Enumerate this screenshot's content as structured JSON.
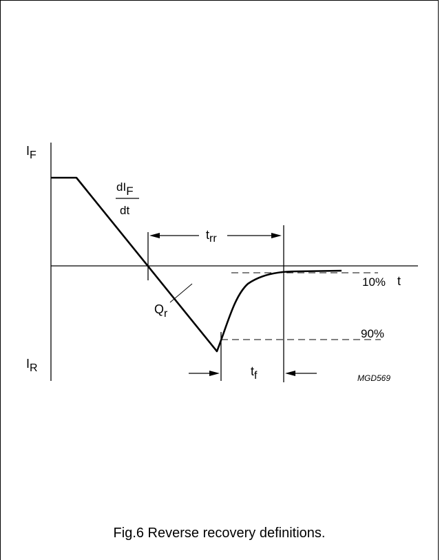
{
  "figure": {
    "caption": "Fig.6  Reverse recovery definitions.",
    "code": "MGD569"
  },
  "labels": {
    "if_main": "I",
    "if_sub": "F",
    "ir_main": "I",
    "ir_sub": "R",
    "didt_num_main": "dI",
    "didt_num_sub": "F",
    "didt_den": "dt",
    "trr_main": "t",
    "trr_sub": "rr",
    "tf_main": "t",
    "tf_sub": "f",
    "qr_main": "Q",
    "qr_sub": "r",
    "t_axis": "t",
    "pct10": "10%",
    "pct90": "90%"
  }
}
